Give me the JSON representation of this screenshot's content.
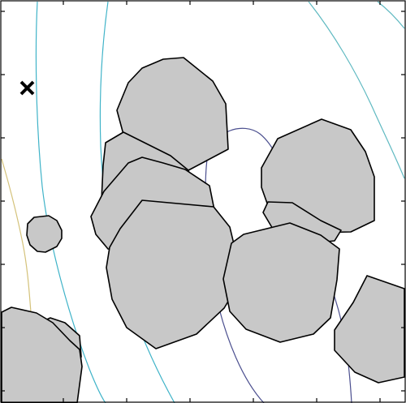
{
  "colors": {
    "background": "#ffffff",
    "obstacle_fill": "#c8c8c8",
    "obstacle_stroke": "#000000",
    "contour_dark": "#4b4f8f",
    "contour_cyan": "#3fb3c8",
    "contour_teal": "#5fb9c1",
    "contour_yellow": "#d4c27a",
    "goal_marker": "#000000",
    "frame": "#000000"
  },
  "icons": {
    "goal_marker": "x-mark-icon"
  },
  "counts": {
    "obstacles": 12,
    "contours": 5
  }
}
